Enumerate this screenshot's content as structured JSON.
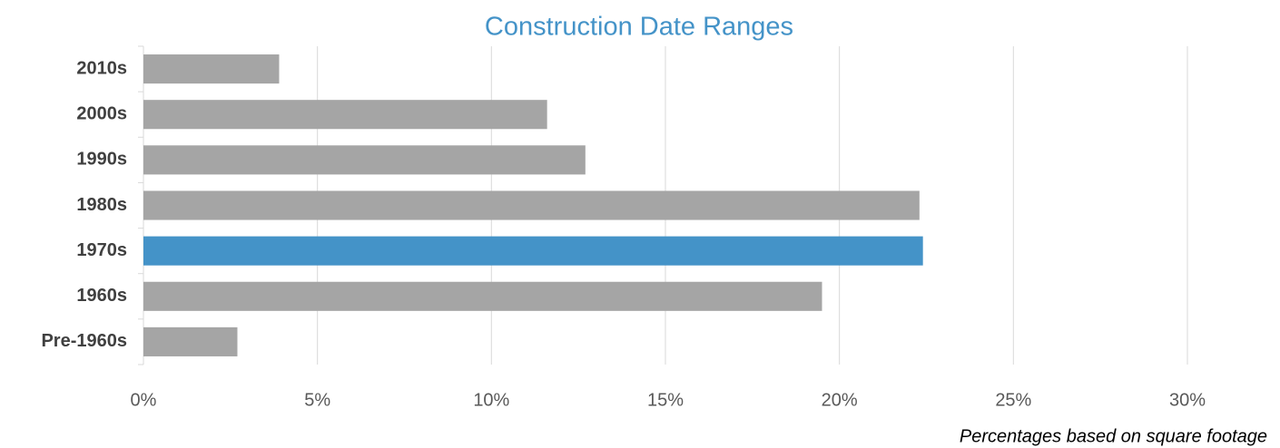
{
  "chart_data": {
    "type": "bar",
    "orientation": "horizontal",
    "title": "Construction Date Ranges",
    "categories": [
      "2010s",
      "2000s",
      "1990s",
      "1980s",
      "1970s",
      "1960s",
      "Pre-1960s"
    ],
    "values": [
      3.9,
      11.6,
      12.7,
      22.3,
      22.4,
      19.5,
      2.7
    ],
    "colors": [
      "#a5a5a5",
      "#a5a5a5",
      "#a5a5a5",
      "#a5a5a5",
      "#4493c8",
      "#a5a5a5",
      "#a5a5a5"
    ],
    "xlim": [
      0,
      30
    ],
    "xticks": [
      {
        "value": 0,
        "label": "0%"
      },
      {
        "value": 5,
        "label": "5%"
      },
      {
        "value": 10,
        "label": "10%"
      },
      {
        "value": 15,
        "label": "15%"
      },
      {
        "value": 20,
        "label": "20%"
      },
      {
        "value": 25,
        "label": "25%"
      },
      {
        "value": 30,
        "label": "30%"
      }
    ],
    "grid": true,
    "note": "Percentages based on square footage"
  }
}
